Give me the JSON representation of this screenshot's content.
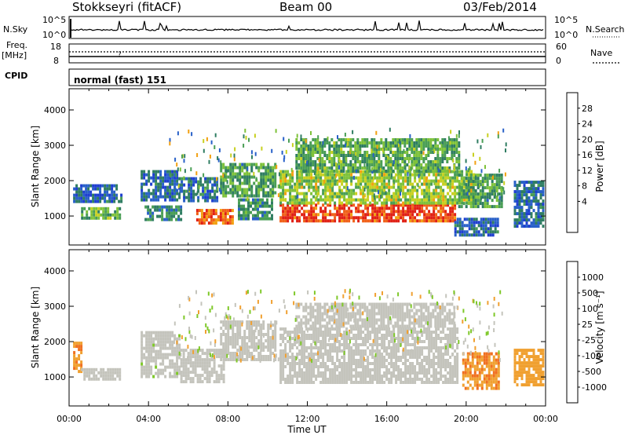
{
  "header": {
    "title": "Stokkseyri (fitACF)",
    "beam": "Beam 00",
    "date": "03/Feb/2014"
  },
  "noise_panel": {
    "left_label": "N.Sky",
    "right_label": "N.Search",
    "left_ticks": [
      "10^5",
      "10^0"
    ],
    "right_ticks": [
      "10^5",
      "10^0"
    ]
  },
  "freq_panel": {
    "left_label": "Freq.",
    "left_unit": "[MHz]",
    "right_label": "Nave",
    "left_ticks": [
      "18",
      "8"
    ],
    "right_ticks": [
      "60",
      "0"
    ],
    "marker": "?"
  },
  "cpid_panel": {
    "label": "CPID",
    "mode": "normal (fast) 151"
  },
  "colors": {
    "power": [
      "#1f3fd0",
      "#2860c8",
      "#2f7d62",
      "#4a9e55",
      "#7ec23a",
      "#c8d020",
      "#f2a010",
      "#f06018",
      "#e02015"
    ],
    "velocity": [
      "#2040c0",
      "#2e7060",
      "#4a9a48",
      "#7ec828",
      "#c4c4bc",
      "#f0a030",
      "#f07020",
      "#e84018",
      "#e01010"
    ]
  },
  "chart_data": [
    {
      "type": "heatmap",
      "name": "power",
      "ylabel": "Slant Range [km]",
      "xlabel": "Time UT",
      "x_ticks": [
        "00:00",
        "04:00",
        "08:00",
        "12:00",
        "16:00",
        "20:00",
        "00:00"
      ],
      "xlim": [
        0,
        24
      ],
      "ylim": [
        180,
        4600
      ],
      "y_ticks": [
        1000,
        2000,
        3000,
        4000
      ],
      "colorbar": {
        "label": "Power [dB]",
        "ticks": [
          "28",
          "24",
          "20",
          "16",
          "12",
          "8",
          "4"
        ],
        "range": [
          0,
          32
        ]
      },
      "regions": [
        {
          "t0": 0.2,
          "t1": 2.6,
          "r0": 1400,
          "r1": 1900,
          "v": 6
        },
        {
          "t0": 0.6,
          "t1": 2.6,
          "r0": 900,
          "r1": 1250,
          "v": 14
        },
        {
          "t0": 3.6,
          "t1": 5.4,
          "r0": 1500,
          "r1": 2300,
          "v": 6
        },
        {
          "t0": 3.8,
          "t1": 5.6,
          "r0": 900,
          "r1": 1300,
          "v": 9
        },
        {
          "t0": 5.5,
          "t1": 7.4,
          "r0": 1400,
          "r1": 2100,
          "v": 7
        },
        {
          "t0": 6.4,
          "t1": 8.2,
          "r0": 800,
          "r1": 1200,
          "v": 26
        },
        {
          "t0": 7.6,
          "t1": 10.4,
          "r0": 1600,
          "r1": 2500,
          "v": 12
        },
        {
          "t0": 8.5,
          "t1": 10.2,
          "r0": 900,
          "r1": 1500,
          "v": 10
        },
        {
          "t0": 10.6,
          "t1": 19.4,
          "r0": 880,
          "r1": 1350,
          "v": 29
        },
        {
          "t0": 10.6,
          "t1": 20.4,
          "r0": 1350,
          "r1": 2300,
          "v": 17
        },
        {
          "t0": 11.4,
          "t1": 19.6,
          "r0": 2300,
          "r1": 3200,
          "v": 13
        },
        {
          "t0": 19.6,
          "t1": 21.8,
          "r0": 1300,
          "r1": 2200,
          "v": 12
        },
        {
          "t0": 19.4,
          "t1": 21.6,
          "r0": 500,
          "r1": 950,
          "v": 6
        },
        {
          "t0": 22.4,
          "t1": 23.9,
          "r0": 700,
          "r1": 2000,
          "v": 7
        }
      ]
    },
    {
      "type": "heatmap",
      "name": "velocity",
      "ylabel": "Slant Range [km]",
      "xlabel": "Time UT",
      "x_ticks": [
        "00:00",
        "04:00",
        "08:00",
        "12:00",
        "16:00",
        "20:00",
        "00:00"
      ],
      "xlim": [
        0,
        24
      ],
      "ylim": [
        180,
        4600
      ],
      "y_ticks": [
        1000,
        2000,
        3000,
        4000
      ],
      "colorbar": {
        "label": "Velocity [m s⁻¹]",
        "ticks": [
          "1000",
          "500",
          "100",
          "25",
          "-25",
          "-100",
          "-500",
          "-1000"
        ],
        "range": [
          -1000,
          1000
        ]
      },
      "regions": [
        {
          "t0": 0.2,
          "t1": 0.6,
          "r0": 1200,
          "r1": 2000,
          "v": -300
        },
        {
          "t0": 0.6,
          "t1": 2.6,
          "r0": 900,
          "r1": 1250,
          "v": 0
        },
        {
          "t0": 3.6,
          "t1": 5.6,
          "r0": 1000,
          "r1": 2300,
          "v": 80
        },
        {
          "t0": 5.6,
          "t1": 7.8,
          "r0": 900,
          "r1": 1800,
          "v": 60
        },
        {
          "t0": 7.6,
          "t1": 10.4,
          "r0": 1500,
          "r1": 2600,
          "v": 0
        },
        {
          "t0": 10.6,
          "t1": 19.6,
          "r0": 880,
          "r1": 2400,
          "v": 0
        },
        {
          "t0": 11.4,
          "t1": 19.4,
          "r0": 2400,
          "r1": 3100,
          "v": 0
        },
        {
          "t0": 19.8,
          "t1": 21.6,
          "r0": 700,
          "r1": 1700,
          "v": -300
        },
        {
          "t0": 22.4,
          "t1": 23.9,
          "r0": 800,
          "r1": 1800,
          "v": -200
        }
      ]
    }
  ]
}
